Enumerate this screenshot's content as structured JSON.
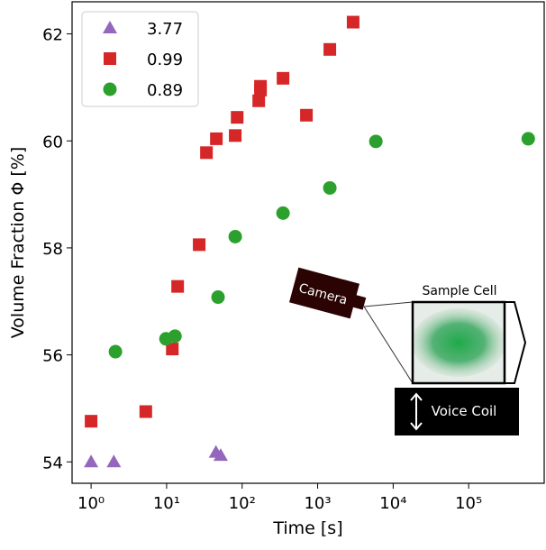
{
  "chart_data": {
    "type": "scatter",
    "x_label": "Time [s]",
    "y_label": "Volume Fraction Φ [%]",
    "x_scale": "log",
    "xlim": [
      0.56,
      1000000
    ],
    "ylim": [
      53.6,
      62.6
    ],
    "xticks": [
      {
        "value": 1,
        "label": "10⁰"
      },
      {
        "value": 10,
        "label": "10¹"
      },
      {
        "value": 100,
        "label": "10²"
      },
      {
        "value": 1000,
        "label": "10³"
      },
      {
        "value": 10000,
        "label": "10⁴"
      },
      {
        "value": 100000,
        "label": "10⁵"
      }
    ],
    "yticks": [
      54,
      56,
      58,
      60,
      62
    ],
    "legend": "upper left",
    "series": [
      {
        "name": "3.77",
        "color": "#9467bd",
        "marker": "triangle",
        "x": [
          1,
          2,
          45,
          52
        ],
        "values": [
          54.0,
          54.0,
          54.18,
          54.12
        ]
      },
      {
        "name": "0.99",
        "color": "#d62728",
        "marker": "square",
        "x": [
          1,
          5.3,
          11.9,
          14,
          27,
          33.7,
          45.6,
          81,
          86,
          166,
          175,
          175,
          348,
          710,
          1450,
          2950
        ],
        "values": [
          54.76,
          54.94,
          56.11,
          57.28,
          58.06,
          59.78,
          60.04,
          60.1,
          60.44,
          60.75,
          61.02,
          60.95,
          61.17,
          60.48,
          61.71,
          62.22
        ]
      },
      {
        "name": "0.89",
        "color": "#2ca02c",
        "marker": "circle",
        "x": [
          2.1,
          9.8,
          12.9,
          48,
          81,
          348,
          1450,
          5900,
          615000
        ],
        "values": [
          56.06,
          56.3,
          56.35,
          57.08,
          58.21,
          58.65,
          59.12,
          59.99,
          60.04
        ]
      }
    ],
    "inset": {
      "camera": "Camera",
      "sample_cell": "Sample Cell",
      "voice_coil": "Voice Coil"
    }
  }
}
